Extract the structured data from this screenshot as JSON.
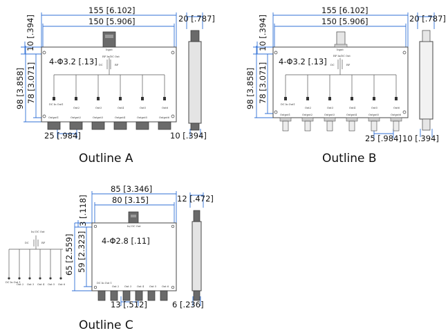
{
  "outline_a": {
    "caption": "Outline A",
    "dim_width_outer": "155 [6.102]",
    "dim_width_inner": "150 [5.906]",
    "dim_depth": "20 [.787]",
    "dim_top_offset": "10 [.394]",
    "dim_holes": "4-Φ3.2 [.13]",
    "dim_height_outer": "98 [3.858]",
    "dim_height_inner": "78 [3.071]",
    "dim_pitch": "25 [.984]",
    "dim_side_offset": "10 [.394]",
    "input_label": "Input",
    "rf_label": "RF In/DC Out",
    "dc_label": "DC",
    "rf_small": "RF",
    "ports_top": [
      "DC In Out1",
      "Out2",
      "Out3",
      "Out4",
      "Out5",
      "Out6"
    ],
    "ports_bottom": [
      "Output1",
      "Output2",
      "Output3",
      "Output4",
      "Output5",
      "Output6"
    ]
  },
  "outline_b": {
    "caption": "Outline B",
    "dim_width_outer": "155 [6.102]",
    "dim_width_inner": "150 [5.906]",
    "dim_depth": "20 [.787]",
    "dim_top_offset": "10 [.394]",
    "dim_holes": "4-Φ3.2 [.13]",
    "dim_height_outer": "98 [3.858]",
    "dim_height_inner": "78 [3.071]",
    "dim_pitch": "25 [.984]",
    "dim_side_offset": "10 [.394]",
    "input_label": "Input",
    "rf_label": "RF In/DC Out",
    "dc_label": "DC",
    "rf_small": "RF",
    "ports_top": [
      "DC In Out1",
      "Out2",
      "Out3",
      "Out4",
      "Out5",
      "Out6"
    ],
    "ports_bottom": [
      "Output1",
      "Output2",
      "Output3",
      "Output4",
      "Output5",
      "Output6"
    ]
  },
  "outline_c": {
    "caption": "Outline C",
    "dim_width_outer": "85 [3.346]",
    "dim_width_inner": "80 [3.15]",
    "dim_depth": "12 [.472]",
    "dim_top_offset": "3 [.118]",
    "dim_holes": "4-Φ2.8 [.11]",
    "dim_height_outer": "65 [2.559]",
    "dim_height_inner": "59 [2.323]",
    "dim_pitch": "13 [.512]",
    "dim_side_offset": "6 [.236]",
    "input_label": "In/ DC Out",
    "dc_label": "DC",
    "rf_small": "RF",
    "ports": [
      "DC In Out 1",
      "Out 2",
      "Out 3",
      "Out 4",
      "Out 5",
      "Out 6"
    ]
  },
  "schematic": {
    "top_label": "In/ DC Out",
    "dc_label": "DC",
    "rf_label": "RF",
    "ports": [
      "DC In Out 1",
      "Out 2",
      "Out 3",
      "Out 4",
      "Out 5",
      "Out 6"
    ]
  }
}
